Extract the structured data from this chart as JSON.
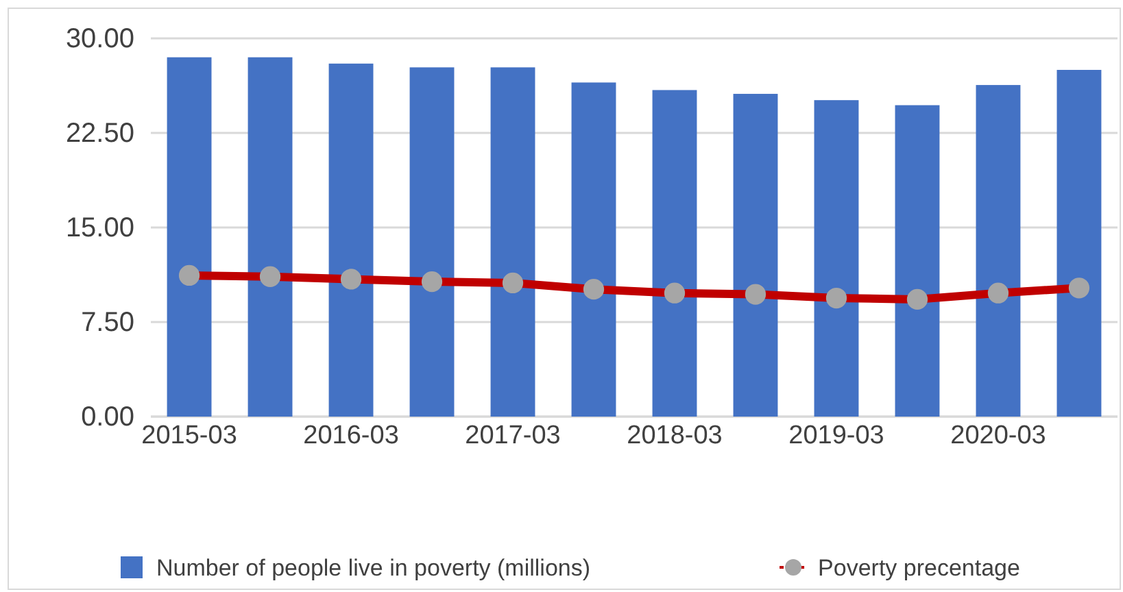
{
  "chart_data": {
    "type": "bar",
    "categories": [
      "2015-03",
      null,
      "2016-03",
      null,
      "2017-03",
      null,
      "2018-03",
      null,
      "2019-03",
      null,
      "2020-03",
      null
    ],
    "series": [
      {
        "name": "Number of people live in poverty (millions)",
        "color": "#4472c4",
        "values": [
          28.5,
          28.5,
          28.0,
          27.7,
          27.7,
          26.5,
          25.9,
          25.6,
          25.1,
          24.7,
          26.3,
          27.5
        ]
      },
      {
        "name": "Poverty precentage",
        "type": "line",
        "color": "#c00000",
        "marker": "circle",
        "values": [
          11.2,
          11.1,
          10.9,
          10.7,
          10.6,
          10.1,
          9.8,
          9.7,
          9.4,
          9.3,
          9.8,
          10.2
        ]
      }
    ],
    "ylim": [
      0,
      30
    ],
    "yticks": [
      {
        "value": 0,
        "label": "0.00"
      },
      {
        "value": 7.5,
        "label": "7.50"
      },
      {
        "value": 15,
        "label": "15.00"
      },
      {
        "value": 22.5,
        "label": "22.50"
      },
      {
        "value": 30,
        "label": "30.00"
      }
    ],
    "grid": "y",
    "legend": "bottom"
  }
}
